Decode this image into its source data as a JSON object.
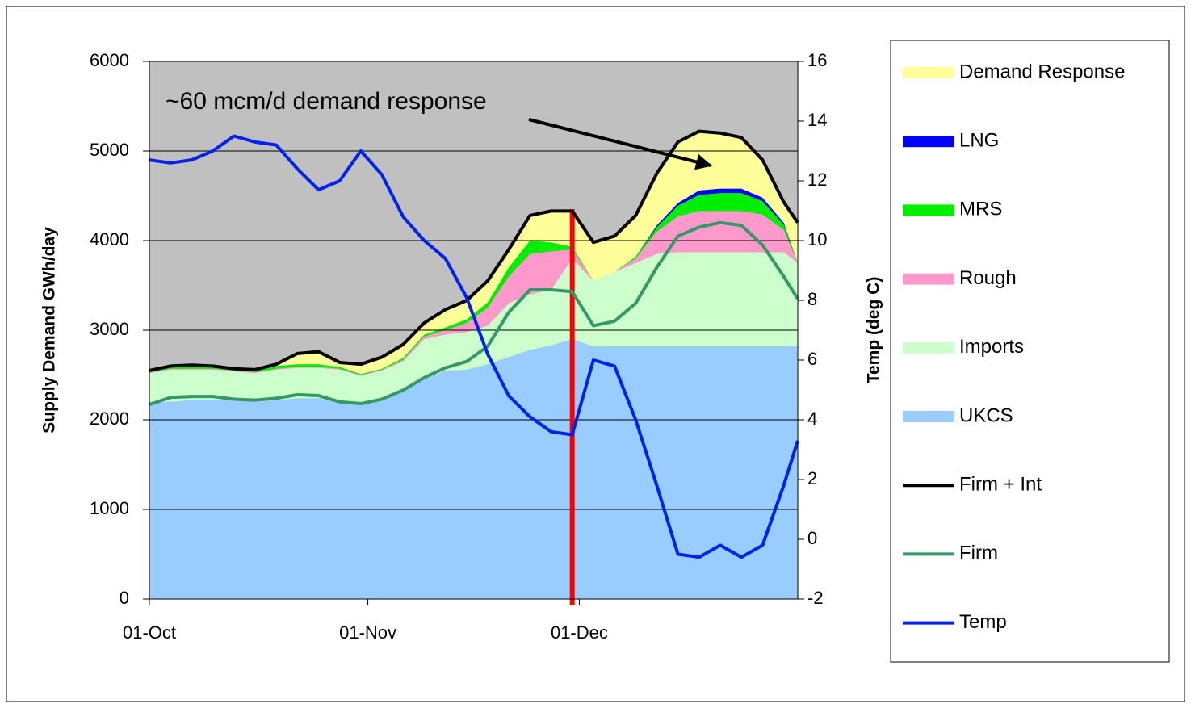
{
  "chart_data": {
    "type": "area",
    "annotation": "~60 mcm/d demand response",
    "ylabel": "Supply Demand GWh/day",
    "y2label": "Temp (deg C)",
    "x": [
      0,
      3,
      6,
      9,
      12,
      15,
      18,
      21,
      24,
      27,
      30,
      33,
      36,
      39,
      42,
      45,
      48,
      51,
      54,
      57,
      60,
      63,
      66,
      69,
      72,
      75,
      78,
      81,
      84,
      87,
      90,
      92
    ],
    "xlim": [
      0,
      92
    ],
    "xticks": [
      {
        "value": 0,
        "label": "01-Oct"
      },
      {
        "value": 31,
        "label": "01-Nov"
      },
      {
        "value": 61,
        "label": "01-Dec"
      }
    ],
    "ylim": [
      0,
      6000
    ],
    "yticks": [
      0,
      1000,
      2000,
      3000,
      4000,
      5000,
      6000
    ],
    "y2lim": [
      -2,
      16
    ],
    "y2ticks": [
      -2,
      0,
      2,
      4,
      6,
      8,
      10,
      12,
      14,
      16
    ],
    "grid": true,
    "vline": {
      "x": 60,
      "color": "#ff0000"
    },
    "series": [
      {
        "name": "Demand Response",
        "color": "#ffff99",
        "style": "area",
        "values": [
          10,
          0,
          10,
          0,
          0,
          0,
          20,
          120,
          140,
          50,
          110,
          130,
          150,
          130,
          200,
          210,
          240,
          200,
          280,
          350,
          400,
          430,
          400,
          460,
          580,
          680,
          660,
          620,
          570,
          420,
          230,
          450
        ]
      },
      {
        "name": "LNG",
        "color": "#0000ff",
        "style": "area",
        "values": [
          0,
          0,
          0,
          0,
          0,
          0,
          0,
          0,
          0,
          0,
          0,
          0,
          0,
          0,
          0,
          0,
          0,
          0,
          0,
          0,
          0,
          0,
          0,
          0,
          20,
          30,
          50,
          50,
          50,
          40,
          20,
          0
        ]
      },
      {
        "name": "MRS",
        "color": "#00ee00",
        "style": "area",
        "values": [
          10,
          30,
          30,
          30,
          30,
          30,
          30,
          30,
          30,
          20,
          10,
          10,
          20,
          20,
          30,
          40,
          60,
          100,
          150,
          100,
          30,
          0,
          0,
          20,
          50,
          120,
          180,
          200,
          200,
          150,
          60,
          0
        ]
      },
      {
        "name": "Rough",
        "color": "#ff99cc",
        "style": "area",
        "values": [
          10,
          10,
          10,
          10,
          10,
          10,
          10,
          10,
          10,
          10,
          10,
          10,
          20,
          30,
          50,
          100,
          200,
          300,
          450,
          430,
          100,
          0,
          0,
          50,
          250,
          400,
          460,
          460,
          460,
          420,
          250,
          0
        ]
      },
      {
        "name": "Imports",
        "color": "#ccffcc",
        "style": "area",
        "values": [
          320,
          360,
          340,
          340,
          320,
          320,
          340,
          340,
          340,
          360,
          310,
          300,
          300,
          450,
          400,
          420,
          430,
          600,
          620,
          620,
          900,
          730,
          830,
          930,
          1030,
          1050,
          1050,
          1050,
          1050,
          1050,
          1050,
          930
        ]
      },
      {
        "name": "UKCS",
        "color": "#99ccff",
        "style": "area",
        "values": [
          2200,
          2200,
          2220,
          2220,
          2220,
          2200,
          2220,
          2240,
          2240,
          2200,
          2180,
          2250,
          2350,
          2450,
          2550,
          2560,
          2620,
          2700,
          2780,
          2830,
          2900,
          2820,
          2820,
          2820,
          2820,
          2820,
          2820,
          2820,
          2820,
          2820,
          2820,
          2820
        ]
      },
      {
        "name": "Firm + Int",
        "color": "#000000",
        "style": "line",
        "values": [
          2550,
          2600,
          2610,
          2600,
          2570,
          2560,
          2620,
          2740,
          2760,
          2640,
          2620,
          2700,
          2840,
          3080,
          3230,
          3330,
          3550,
          3900,
          4280,
          4330,
          4330,
          3980,
          4050,
          4280,
          4750,
          5100,
          5220,
          5200,
          5150,
          4900,
          4430,
          4200
        ]
      },
      {
        "name": "Firm",
        "color": "#339966",
        "style": "line",
        "values": [
          2170,
          2250,
          2260,
          2260,
          2230,
          2220,
          2240,
          2280,
          2270,
          2200,
          2180,
          2230,
          2330,
          2470,
          2580,
          2650,
          2820,
          3200,
          3450,
          3450,
          3430,
          3050,
          3100,
          3300,
          3700,
          4050,
          4150,
          4200,
          4170,
          3950,
          3600,
          3350
        ]
      },
      {
        "name": "Temp",
        "color": "#0022ee",
        "style": "line",
        "axis": "y2",
        "values": [
          12.7,
          12.6,
          12.7,
          13.0,
          13.5,
          13.3,
          13.2,
          12.4,
          11.7,
          12.0,
          13.0,
          12.2,
          10.8,
          10.0,
          9.4,
          8.1,
          6.2,
          4.8,
          4.1,
          3.6,
          3.5,
          6.0,
          5.8,
          4.0,
          1.8,
          -0.5,
          -0.6,
          -0.2,
          -0.6,
          -0.2,
          1.8,
          3.3
        ]
      }
    ]
  }
}
